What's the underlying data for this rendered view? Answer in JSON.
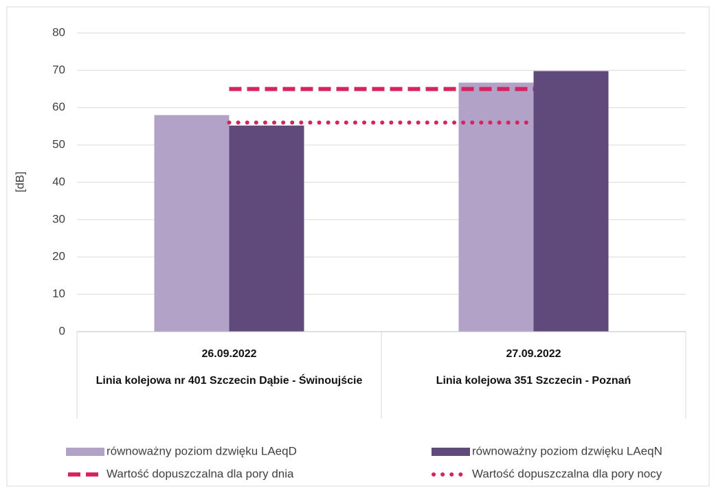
{
  "chart_data": {
    "type": "bar",
    "y_label": "[dB]",
    "categories": [
      "26.09.2022",
      "27.09.2022"
    ],
    "category_groups": [
      "Linia kolejowa nr 401 Szczecin Dąbie - Świnoujście",
      "Linia kolejowa 351 Szczecin - Poznań"
    ],
    "series": [
      {
        "name": "równoważny poziom dzwięku LAeqD",
        "type": "bar",
        "color": "#b3a2c7",
        "values": [
          58.0,
          66.7
        ]
      },
      {
        "name": "równoważny poziom dzwięku LAeqN",
        "type": "bar",
        "color": "#604a7b",
        "values": [
          55.2,
          69.8
        ]
      },
      {
        "name": "Wartość dopuszczalna dla pory dnia",
        "type": "line",
        "dash": "dashed",
        "color": "#d6245f",
        "values": [
          65,
          65
        ]
      },
      {
        "name": "Wartość dopuszczalna dla pory nocy",
        "type": "line",
        "dash": "dotted",
        "color": "#d6245f",
        "values": [
          56,
          56
        ]
      }
    ],
    "ylim": [
      0,
      80
    ],
    "yticks": [
      0,
      10,
      20,
      30,
      40,
      50,
      60,
      70,
      80
    ],
    "grid": true
  }
}
